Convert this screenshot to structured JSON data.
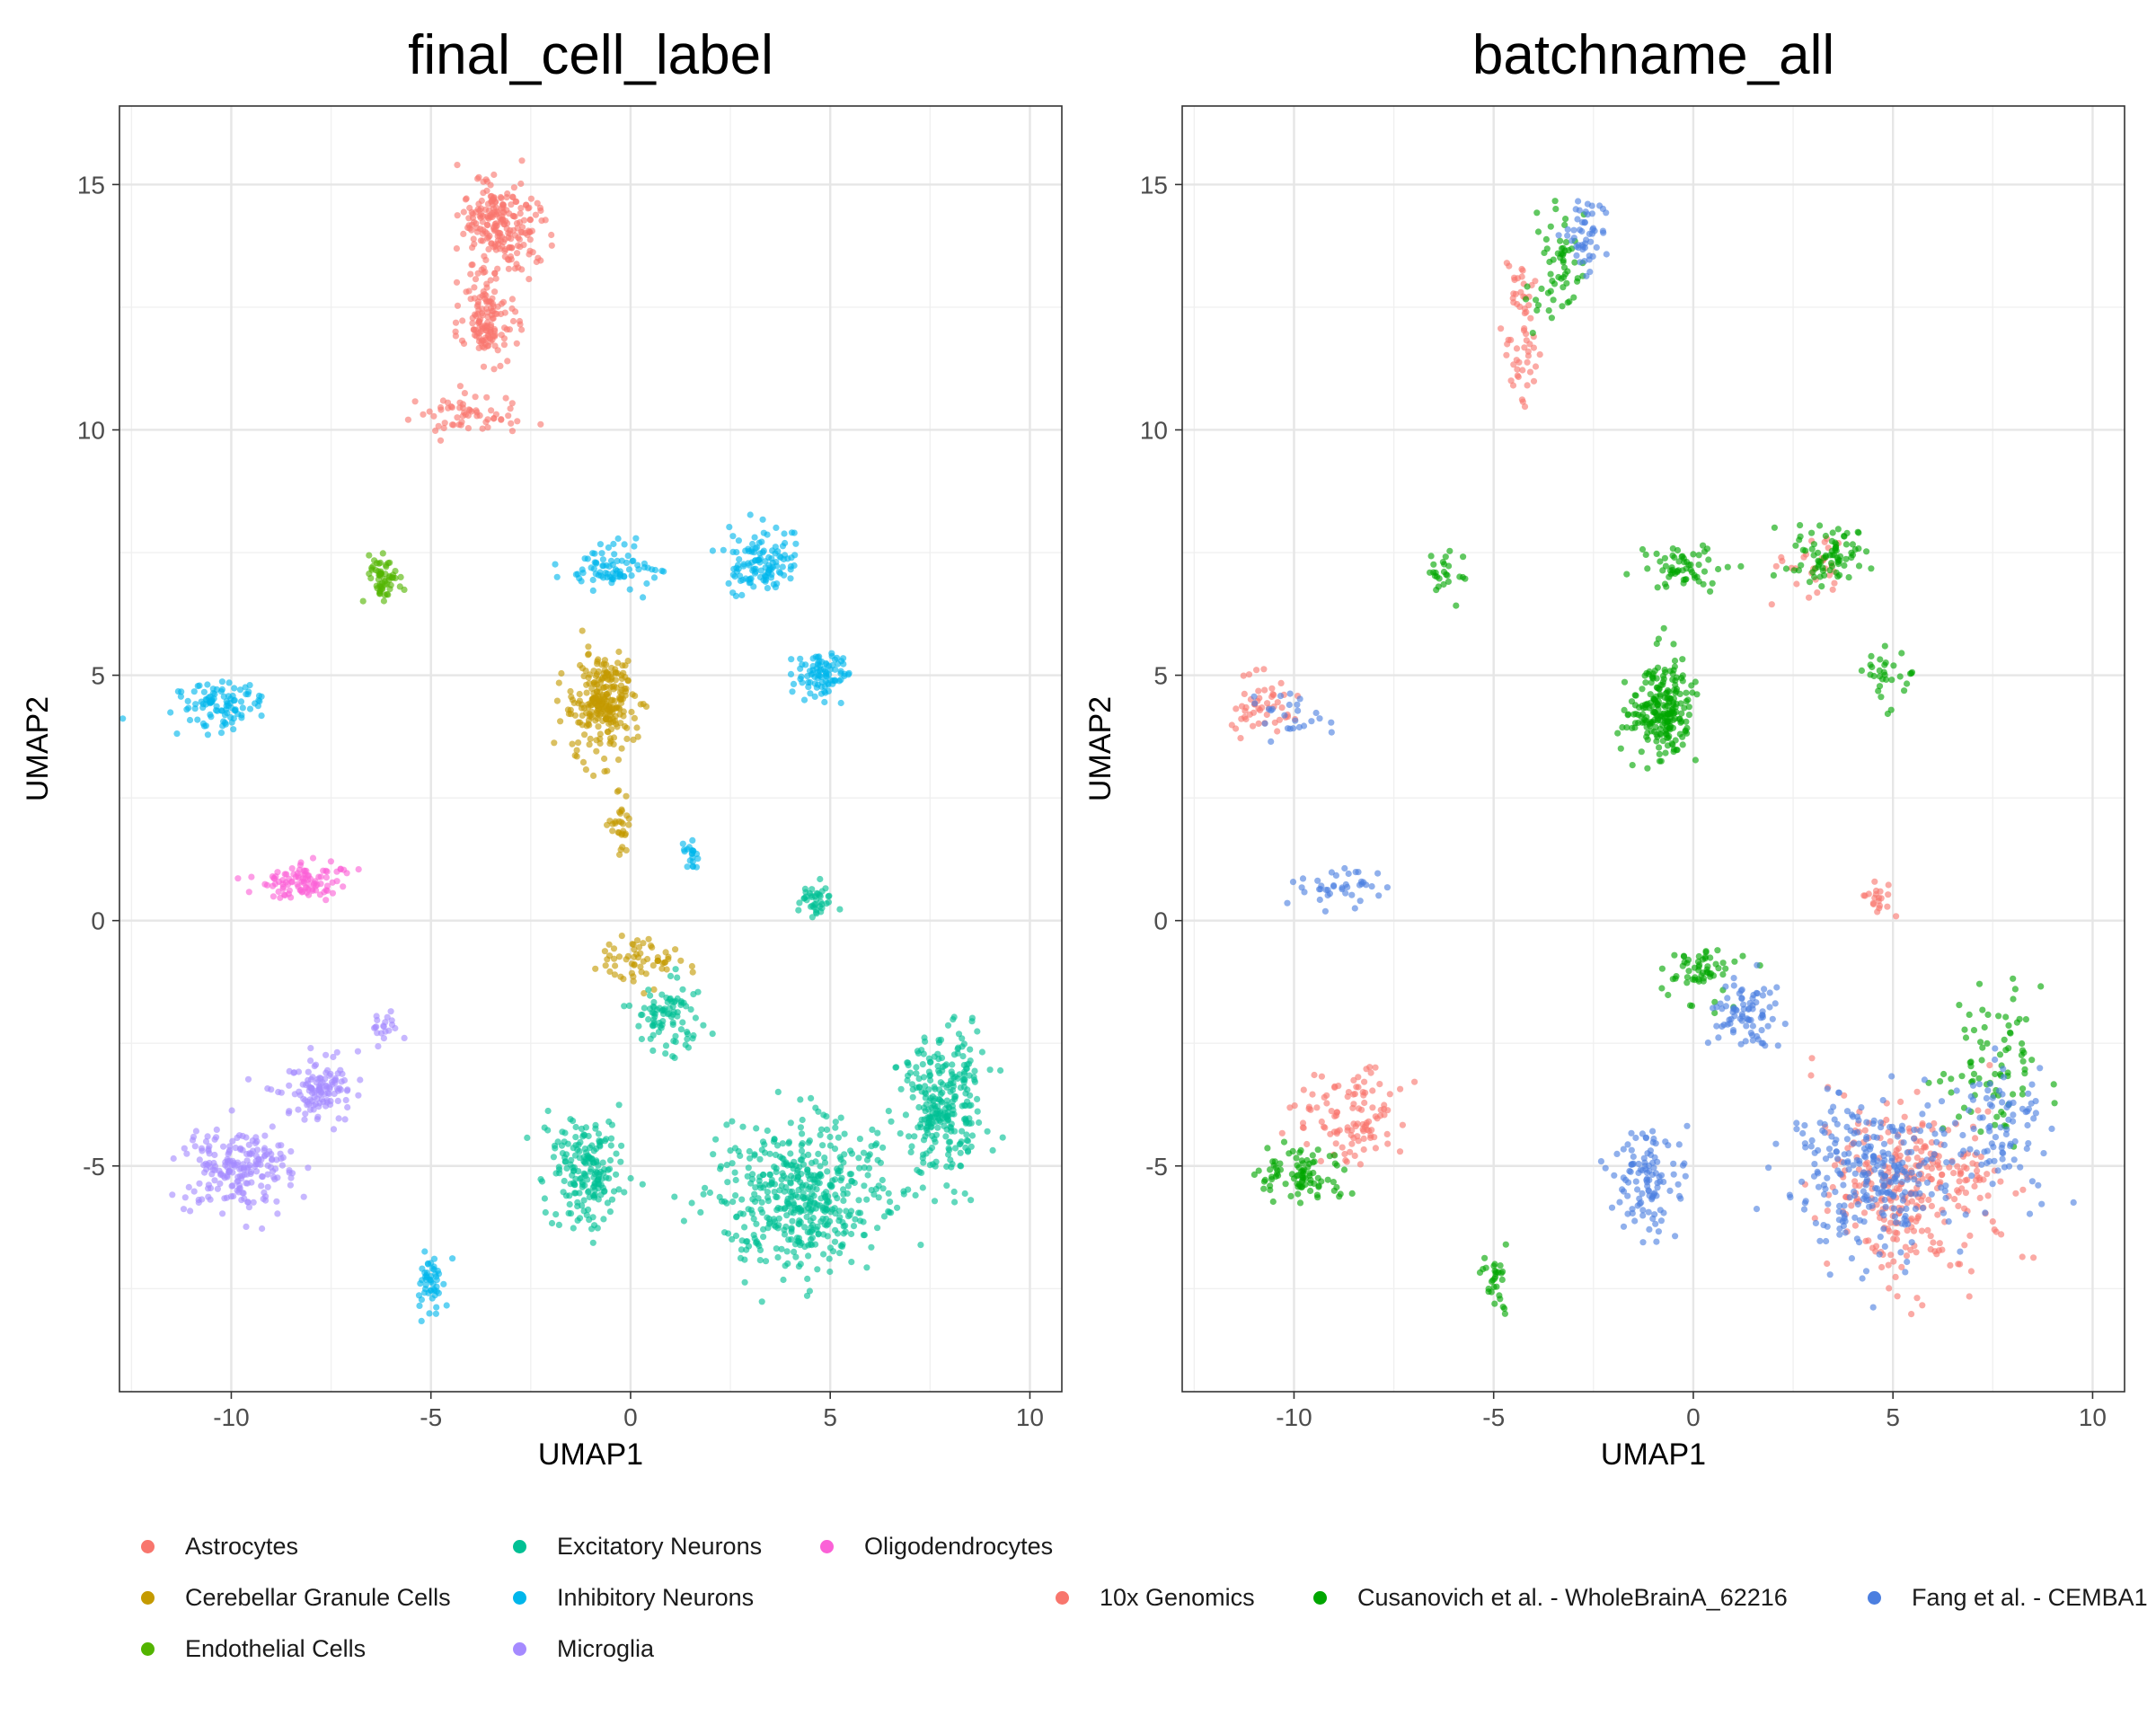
{
  "chart_data": [
    {
      "type": "scatter",
      "title": "final_cell_label",
      "xlabel": "UMAP1",
      "ylabel": "UMAP2",
      "xlim": [
        -12.8,
        10.8
      ],
      "ylim": [
        -9.6,
        16.6
      ],
      "xticks": [
        -10,
        -5,
        0,
        5,
        10
      ],
      "xtick_labels": [
        "-10",
        "-5",
        "0",
        "5",
        "10"
      ],
      "yticks": [
        -5,
        0,
        5,
        10,
        15
      ],
      "ytick_labels": [
        "-5",
        "0",
        "5",
        "10",
        "15"
      ],
      "grid": true,
      "legend_position": "bottom",
      "series": [
        {
          "name": "Astrocytes",
          "color": "#F8766D",
          "clusters": [
            {
              "center": [
                -3.3,
                14.2
              ],
              "spread": [
                0.9,
                0.8
              ],
              "n": 220
            },
            {
              "center": [
                -3.6,
                12.3
              ],
              "spread": [
                0.6,
                0.9
              ],
              "n": 140
            },
            {
              "center": [
                -3.8,
                10.3
              ],
              "spread": [
                1.2,
                0.35
              ],
              "n": 60
            }
          ]
        },
        {
          "name": "Cerebellar Granule Cells",
          "color": "#C49A00",
          "clusters": [
            {
              "center": [
                -0.7,
                4.4
              ],
              "spread": [
                0.7,
                0.9
              ],
              "n": 260
            },
            {
              "center": [
                0.4,
                -0.8
              ],
              "spread": [
                1.0,
                0.4
              ],
              "n": 60
            },
            {
              "center": [
                -0.3,
                2.0
              ],
              "spread": [
                0.3,
                0.8
              ],
              "n": 30
            }
          ]
        },
        {
          "name": "Endothelial Cells",
          "color": "#53B400",
          "clusters": [
            {
              "center": [
                -6.2,
                7.0
              ],
              "spread": [
                0.35,
                0.5
              ],
              "n": 60
            }
          ]
        },
        {
          "name": "Excitatory Neurons",
          "color": "#00C094",
          "clusters": [
            {
              "center": [
                4.3,
                -5.6
              ],
              "spread": [
                1.9,
                1.4
              ],
              "n": 480
            },
            {
              "center": [
                7.8,
                -3.7
              ],
              "spread": [
                1.0,
                1.4
              ],
              "n": 280
            },
            {
              "center": [
                -1.1,
                -5.1
              ],
              "spread": [
                0.8,
                1.0
              ],
              "n": 190
            },
            {
              "center": [
                1.0,
                -2.0
              ],
              "spread": [
                0.8,
                0.6
              ],
              "n": 90
            },
            {
              "center": [
                4.6,
                0.4
              ],
              "spread": [
                0.4,
                0.3
              ],
              "n": 40
            }
          ]
        },
        {
          "name": "Inhibitory Neurons",
          "color": "#00B6EB",
          "clusters": [
            {
              "center": [
                3.3,
                7.3
              ],
              "spread": [
                0.8,
                0.6
              ],
              "n": 120
            },
            {
              "center": [
                4.8,
                5.0
              ],
              "spread": [
                0.6,
                0.5
              ],
              "n": 90
            },
            {
              "center": [
                -0.4,
                7.2
              ],
              "spread": [
                1.0,
                0.4
              ],
              "n": 80
            },
            {
              "center": [
                -10.3,
                4.4
              ],
              "spread": [
                1.0,
                0.5
              ],
              "n": 100
            },
            {
              "center": [
                -5.0,
                -7.4
              ],
              "spread": [
                0.3,
                0.6
              ],
              "n": 50
            },
            {
              "center": [
                1.5,
                1.3
              ],
              "spread": [
                0.2,
                0.25
              ],
              "n": 20
            }
          ]
        },
        {
          "name": "Microglia",
          "color": "#A58AFF",
          "clusters": [
            {
              "center": [
                -9.8,
                -5.1
              ],
              "spread": [
                1.2,
                0.7
              ],
              "n": 200
            },
            {
              "center": [
                -7.8,
                -3.4
              ],
              "spread": [
                0.8,
                0.6
              ],
              "n": 120
            },
            {
              "center": [
                -6.2,
                -2.2
              ],
              "spread": [
                0.4,
                0.3
              ],
              "n": 20
            }
          ]
        },
        {
          "name": "Oligodendrocytes",
          "color": "#FB61D7",
          "clusters": [
            {
              "center": [
                -8.2,
                0.8
              ],
              "spread": [
                0.9,
                0.3
              ],
              "n": 100
            }
          ]
        }
      ]
    },
    {
      "type": "scatter",
      "title": "batchname_all",
      "xlabel": "UMAP1",
      "ylabel": "UMAP2",
      "xlim": [
        -12.8,
        10.8
      ],
      "ylim": [
        -9.6,
        16.6
      ],
      "xticks": [
        -10,
        -5,
        0,
        5,
        10
      ],
      "xtick_labels": [
        "-10",
        "-5",
        "0",
        "5",
        "10"
      ],
      "yticks": [
        -5,
        0,
        5,
        10,
        15
      ],
      "ytick_labels": [
        "-5",
        "0",
        "5",
        "10",
        "15"
      ],
      "grid": true,
      "legend_position": "bottom",
      "series": [
        {
          "name": "10x Genomics",
          "color": "#F8766D",
          "clusters": [
            {
              "center": [
                5.5,
                -5.5
              ],
              "spread": [
                2.0,
                1.6
              ],
              "n": 300
            },
            {
              "center": [
                -8.5,
                -4.0
              ],
              "spread": [
                1.3,
                0.9
              ],
              "n": 110
            },
            {
              "center": [
                -10.8,
                4.3
              ],
              "spread": [
                0.8,
                0.5
              ],
              "n": 50
            },
            {
              "center": [
                -4.3,
                12.0
              ],
              "spread": [
                0.5,
                1.6
              ],
              "n": 60
            },
            {
              "center": [
                4.6,
                0.4
              ],
              "spread": [
                0.4,
                0.3
              ],
              "n": 20
            },
            {
              "center": [
                3.0,
                7.3
              ],
              "spread": [
                0.7,
                0.6
              ],
              "n": 30
            }
          ]
        },
        {
          "name": "Cusanovich et al. - WholeBrainA_62216",
          "color": "#00A600",
          "clusters": [
            {
              "center": [
                -0.8,
                4.3
              ],
              "spread": [
                0.7,
                0.9
              ],
              "n": 230
            },
            {
              "center": [
                -0.3,
                7.2
              ],
              "spread": [
                0.9,
                0.4
              ],
              "n": 60
            },
            {
              "center": [
                3.3,
                7.5
              ],
              "spread": [
                0.8,
                0.6
              ],
              "n": 80
            },
            {
              "center": [
                -9.8,
                -5.2
              ],
              "spread": [
                1.0,
                0.6
              ],
              "n": 90
            },
            {
              "center": [
                -3.3,
                13.5
              ],
              "spread": [
                0.7,
                1.3
              ],
              "n": 60
            },
            {
              "center": [
                0.2,
                -1.0
              ],
              "spread": [
                0.9,
                0.6
              ],
              "n": 60
            },
            {
              "center": [
                -5.0,
                -7.4
              ],
              "spread": [
                0.3,
                0.6
              ],
              "n": 30
            },
            {
              "center": [
                -6.3,
                7.0
              ],
              "spread": [
                0.4,
                0.5
              ],
              "n": 25
            },
            {
              "center": [
                7.5,
                -3.0
              ],
              "spread": [
                1.2,
                1.4
              ],
              "n": 80
            },
            {
              "center": [
                4.8,
                5.0
              ],
              "spread": [
                0.6,
                0.5
              ],
              "n": 30
            }
          ]
        },
        {
          "name": "Fang et al. - CEMBA1",
          "color": "#4C7FE0",
          "clusters": [
            {
              "center": [
                4.5,
                -5.2
              ],
              "spread": [
                1.9,
                1.5
              ],
              "n": 280
            },
            {
              "center": [
                -1.1,
                -5.3
              ],
              "spread": [
                0.8,
                1.0
              ],
              "n": 110
            },
            {
              "center": [
                1.3,
                -1.9
              ],
              "spread": [
                0.7,
                0.6
              ],
              "n": 80
            },
            {
              "center": [
                -2.7,
                14.0
              ],
              "spread": [
                0.5,
                0.8
              ],
              "n": 50
            },
            {
              "center": [
                -8.8,
                0.7
              ],
              "spread": [
                0.9,
                0.3
              ],
              "n": 40
            },
            {
              "center": [
                -10.0,
                4.2
              ],
              "spread": [
                0.9,
                0.5
              ],
              "n": 25
            },
            {
              "center": [
                7.8,
                -4.2
              ],
              "spread": [
                1.0,
                1.2
              ],
              "n": 80
            }
          ]
        }
      ]
    }
  ],
  "legends": {
    "cell_label": [
      "Astrocytes",
      "Cerebellar Granule Cells",
      "Endothelial Cells",
      "Excitatory Neurons",
      "Inhibitory Neurons",
      "Microglia",
      "Oligodendrocytes"
    ],
    "batch": [
      "10x Genomics",
      "Cusanovich et al. - WholeBrainA_62216",
      "Fang et al. - CEMBA1"
    ]
  }
}
